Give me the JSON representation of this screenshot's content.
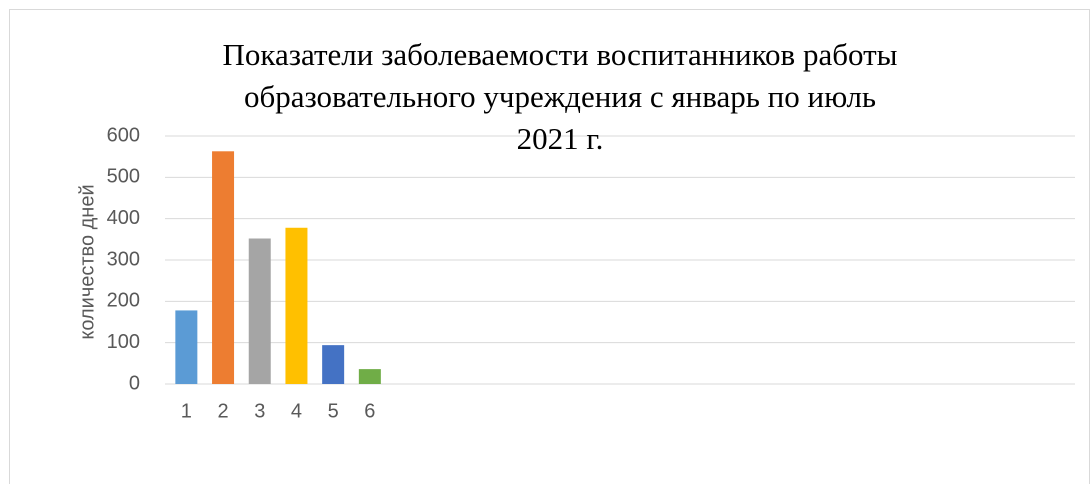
{
  "chart_data": {
    "type": "bar",
    "title": "Показатели  заболеваемости воспитанников  работы\nобразовательного учреждения с январь по июль\n2021 г.",
    "y_label": "количество дней",
    "categories": [
      "1",
      "2",
      "3",
      "4",
      "5",
      "6"
    ],
    "values": [
      178,
      563,
      352,
      378,
      94,
      36
    ],
    "colors": [
      "#5b9bd5",
      "#ed7d31",
      "#a5a5a5",
      "#ffc000",
      "#4472c4",
      "#70ad47"
    ],
    "ylim": [
      0,
      600
    ],
    "yticks": [
      0,
      100,
      200,
      300,
      400,
      500,
      600
    ],
    "grid": true
  }
}
